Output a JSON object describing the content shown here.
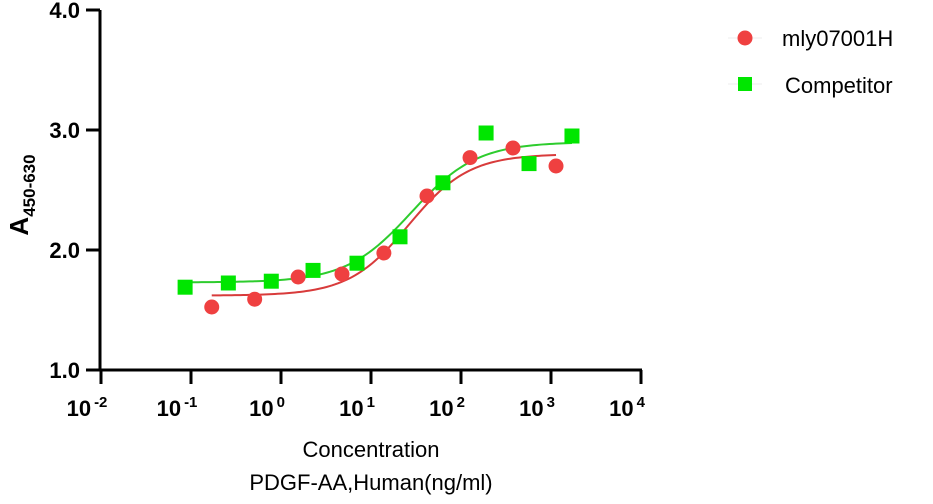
{
  "chart_data": {
    "type": "scatter",
    "title": "",
    "xlabel": "Concentration",
    "xlabel_line2": "PDGF-AA,Human(ng/ml)",
    "ylabel": "A",
    "ylabel_subscript": "450-630",
    "xscale": "log10",
    "xlim": [
      0.01,
      10000
    ],
    "ylim": [
      1.0,
      4.0
    ],
    "x_ticks": [
      {
        "base": "10",
        "exp": "-2",
        "value": 0.01
      },
      {
        "base": "10",
        "exp": "-1",
        "value": 0.1
      },
      {
        "base": "10",
        "exp": "0",
        "value": 1
      },
      {
        "base": "10",
        "exp": "1",
        "value": 10
      },
      {
        "base": "10",
        "exp": "2",
        "value": 100
      },
      {
        "base": "10",
        "exp": "3",
        "value": 1000
      },
      {
        "base": "10",
        "exp": "4",
        "value": 10000
      }
    ],
    "y_ticks": [
      {
        "label": "1.0",
        "value": 1.0
      },
      {
        "label": "2.0",
        "value": 2.0
      },
      {
        "label": "3.0",
        "value": 3.0
      },
      {
        "label": "4.0",
        "value": 4.0
      }
    ],
    "grid": false,
    "legend_position": "top-right",
    "series": [
      {
        "name": "mly07001H",
        "marker": "circle",
        "color": "#ef4040",
        "x": [
          0.17,
          0.51,
          1.55,
          4.76,
          13.9,
          41.9,
          126,
          378,
          1137
        ],
        "y": [
          1.525,
          1.59,
          1.775,
          1.8,
          1.975,
          2.45,
          2.77,
          2.85,
          2.7
        ],
        "fit": {
          "model": "4PL",
          "bottom": 1.62,
          "top": 2.8,
          "logEC50": 1.42,
          "hill": 1.3,
          "x_range": [
            0.17,
            1137
          ]
        }
      },
      {
        "name": "Competitor",
        "marker": "square",
        "color": "#00e600",
        "x": [
          0.086,
          0.26,
          0.78,
          2.27,
          6.99,
          21,
          63,
          190,
          570,
          1710
        ],
        "y": [
          1.69,
          1.725,
          1.74,
          1.83,
          1.89,
          2.11,
          2.56,
          2.975,
          2.72,
          2.95
        ],
        "fit": {
          "model": "4PL",
          "bottom": 1.73,
          "top": 2.9,
          "logEC50": 1.45,
          "hill": 1.2,
          "x_range": [
            0.086,
            1710
          ]
        }
      }
    ]
  }
}
